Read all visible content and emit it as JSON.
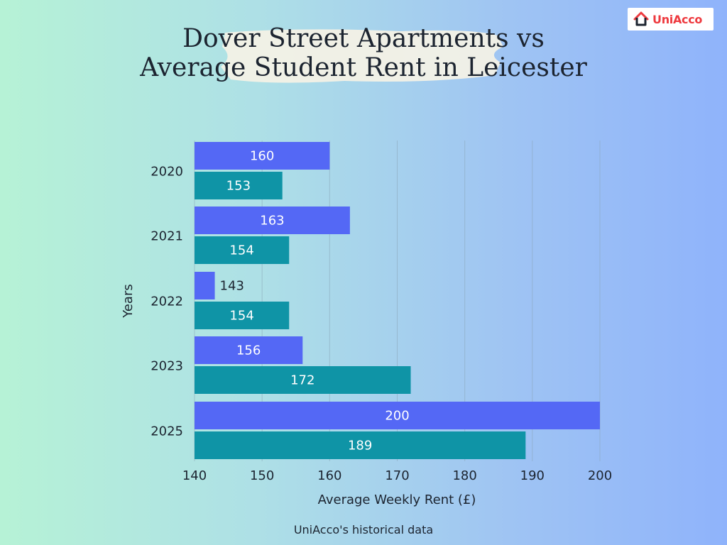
{
  "logo": {
    "text": "UniAcco",
    "icon": "house-icon",
    "color": "#ee3a3f"
  },
  "title_lines": [
    "Dover Street Apartments vs",
    "Average Student Rent in Leicester"
  ],
  "source": "UniAcco's historical data",
  "chart_data": {
    "type": "bar",
    "orientation": "horizontal",
    "title": "Dover Street Apartments vs Average Student Rent in Leicester",
    "categories": [
      "2020",
      "2021",
      "2022",
      "2023",
      "2025"
    ],
    "series": [
      {
        "values": [
          160,
          163,
          143,
          156,
          200
        ],
        "color": "#5468f5"
      },
      {
        "values": [
          153,
          154,
          154,
          172,
          189
        ],
        "color": "#0f94a6"
      }
    ],
    "xlabel": "Average Weekly Rent (£)",
    "ylabel": "Years",
    "xlim": [
      140,
      200
    ],
    "xticks": [
      "140",
      "150",
      "160",
      "170",
      "180",
      "190",
      "200"
    ],
    "grid": "vertical",
    "data_labels": true
  }
}
